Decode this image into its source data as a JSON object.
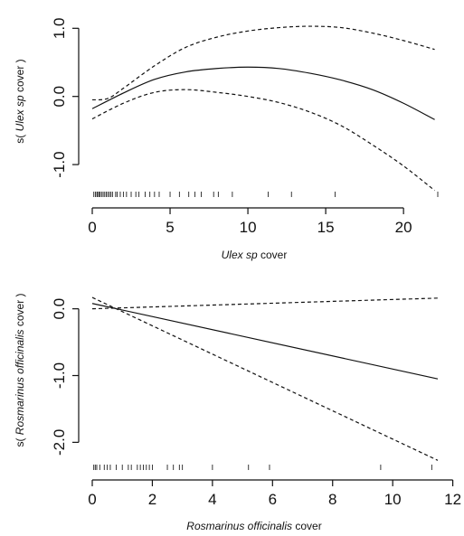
{
  "chart_data": [
    {
      "type": "line",
      "xlabel": {
        "italic": "Ulex sp",
        "rest": " cover"
      },
      "ylabel": {
        "prefix": "s( ",
        "italic": "Ulex sp",
        "suffix": " cover )"
      },
      "xlim": [
        0,
        22.2
      ],
      "ylim": [
        -1.45,
        1.15
      ],
      "xticks": [
        0,
        5,
        10,
        15,
        20
      ],
      "yticks": [
        -1.0,
        0.0,
        1.0
      ],
      "ytick_labels": [
        "-1.0",
        "0.0",
        "1.0"
      ],
      "grid": false,
      "legend": "none",
      "series": [
        {
          "style": "solid",
          "x": [
            0,
            2,
            4,
            6,
            8,
            10,
            12,
            14,
            16,
            18,
            20,
            22
          ],
          "y": [
            -0.18,
            0.05,
            0.25,
            0.36,
            0.41,
            0.43,
            0.41,
            0.34,
            0.24,
            0.1,
            -0.1,
            -0.34
          ]
        },
        {
          "style": "dashed",
          "x": [
            0,
            1,
            2,
            4,
            6,
            8,
            10,
            12,
            14,
            16,
            18,
            20,
            22
          ],
          "y": [
            -0.05,
            -0.03,
            0.12,
            0.45,
            0.72,
            0.87,
            0.96,
            1.01,
            1.03,
            1.01,
            0.93,
            0.82,
            0.69
          ]
        },
        {
          "style": "dashed",
          "x": [
            0,
            2,
            4,
            6,
            8,
            10,
            12,
            14,
            16,
            18,
            20,
            22
          ],
          "y": [
            -0.33,
            -0.1,
            0.06,
            0.1,
            0.06,
            0.0,
            -0.09,
            -0.23,
            -0.43,
            -0.71,
            -1.02,
            -1.38
          ]
        }
      ],
      "rug": [
        0.1,
        0.2,
        0.3,
        0.35,
        0.45,
        0.5,
        0.6,
        0.7,
        0.8,
        0.9,
        1.0,
        1.1,
        1.2,
        1.3,
        1.5,
        1.6,
        1.8,
        2.0,
        2.2,
        2.5,
        2.8,
        3.0,
        3.4,
        3.7,
        4.0,
        4.3,
        5.0,
        5.6,
        6.2,
        6.6,
        7.0,
        7.8,
        8.1,
        9.0,
        11.3,
        12.8,
        15.6,
        22.2
      ]
    },
    {
      "type": "line",
      "xlabel": {
        "italic": "Rosmarinus officinalis",
        "rest": " cover"
      },
      "ylabel": {
        "prefix": "s( ",
        "italic": "Rosmarinus officinalis",
        "suffix": " cover )"
      },
      "xlim": [
        0,
        11.5
      ],
      "ylim": [
        -2.32,
        0.32
      ],
      "xticks": [
        0,
        2,
        4,
        6,
        8,
        10,
        12
      ],
      "yticks": [
        -2.0,
        -1.0,
        0.0
      ],
      "ytick_labels": [
        "-2.0",
        "-1.0",
        "0.0"
      ],
      "grid": false,
      "legend": "none",
      "series": [
        {
          "style": "solid",
          "x": [
            0,
            11.5
          ],
          "y": [
            0.08,
            -1.05
          ]
        },
        {
          "style": "dashed",
          "x": [
            0,
            11.5
          ],
          "y": [
            0.0,
            0.16
          ]
        },
        {
          "style": "dashed",
          "x": [
            0,
            11.5
          ],
          "y": [
            0.17,
            -2.27
          ]
        }
      ],
      "rug": [
        0.05,
        0.1,
        0.15,
        0.25,
        0.4,
        0.5,
        0.6,
        0.8,
        1.0,
        1.2,
        1.3,
        1.5,
        1.6,
        1.7,
        1.8,
        1.9,
        2.0,
        2.5,
        2.7,
        2.9,
        3.0,
        4.0,
        5.2,
        5.9,
        9.6,
        11.3
      ]
    }
  ]
}
